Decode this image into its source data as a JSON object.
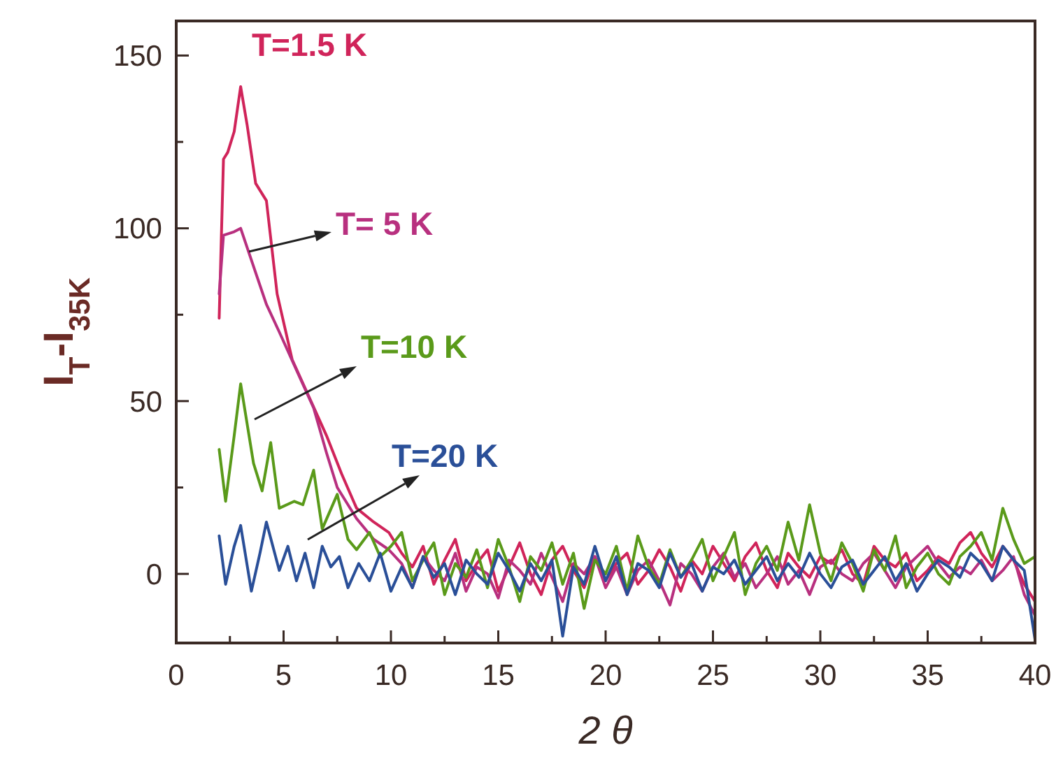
{
  "chart_data": {
    "type": "line",
    "xlabel": "2 θ",
    "ylabel": "I$_{T}$-I$_{35K}$",
    "xlim": [
      0,
      40
    ],
    "ylim": [
      -20,
      160
    ],
    "xticks": [
      0,
      {
        "value": 2.5,
        "label": null
      },
      5,
      {
        "value": 7.5,
        "label": null
      },
      10,
      {
        "value": 12.5,
        "label": null
      },
      15,
      {
        "value": 17.5,
        "label": null
      },
      20,
      {
        "value": 22.5,
        "label": null
      },
      25,
      {
        "value": 27.5,
        "label": null
      },
      30,
      {
        "value": 32.5,
        "label": null
      },
      35,
      {
        "value": 37.5,
        "label": null
      },
      40
    ],
    "yticks": [
      0,
      {
        "value": 25,
        "label": null
      },
      50,
      {
        "value": 75,
        "label": null
      },
      100,
      {
        "value": 125,
        "label": null
      },
      150
    ],
    "grid": false,
    "marker": "none",
    "line_style": "solid",
    "series": [
      {
        "name": "T=1.5 K",
        "color": "#d0245a",
        "x": [
          2,
          2.2,
          2.4,
          2.7,
          3,
          3.3,
          3.7,
          4.2,
          4.7,
          5.4,
          6.2,
          7,
          7.7,
          8.4,
          9.2,
          9.9,
          10.5,
          11,
          11.5,
          12,
          12.5,
          13,
          13.5,
          14,
          14.5,
          15,
          15.5,
          16,
          16.5,
          17,
          17.5,
          18,
          18.5,
          19,
          19.5,
          20,
          20.5,
          21,
          21.5,
          22,
          22.5,
          23,
          23.5,
          24,
          24.5,
          25,
          25.5,
          26,
          26.5,
          27,
          27.5,
          28,
          28.5,
          29,
          29.5,
          30,
          30.5,
          31,
          31.5,
          32,
          32.5,
          33,
          33.5,
          34,
          34.5,
          35,
          35.5,
          36,
          36.5,
          37,
          37.5,
          38,
          38.5,
          39,
          39.5,
          40
        ],
        "values": [
          74,
          120,
          122,
          128,
          141,
          130,
          113,
          108,
          81,
          62,
          51,
          40,
          29,
          19,
          15,
          12,
          6,
          2,
          8,
          -3,
          4,
          10,
          -2,
          3,
          7,
          -5,
          2,
          9,
          0,
          -6,
          4,
          8,
          1,
          -4,
          5,
          -2,
          3,
          6,
          -3,
          1,
          7,
          2,
          -5,
          4,
          0,
          8,
          3,
          -2,
          5,
          9,
          1,
          -4,
          6,
          2,
          -1,
          5,
          3,
          7,
          0,
          -3,
          8,
          4,
          2,
          6,
          -2,
          1,
          5,
          3,
          9,
          12,
          6,
          2,
          8,
          4,
          -3,
          -8
        ]
      },
      {
        "name": "T= 5 K",
        "color": "#b8307f",
        "x": [
          2,
          2.2,
          2.7,
          3,
          3.6,
          4.2,
          4.8,
          5.6,
          6.4,
          7,
          7.5,
          8.4,
          9.2,
          9.9,
          10.5,
          11,
          11.5,
          12,
          12.5,
          13,
          13.5,
          14,
          14.5,
          15,
          15.5,
          16,
          16.5,
          17,
          17.5,
          18,
          18.5,
          19,
          19.5,
          20,
          20.5,
          21,
          21.5,
          22,
          22.5,
          23,
          23.5,
          24,
          24.5,
          25,
          25.5,
          26,
          26.5,
          27,
          27.5,
          28,
          28.5,
          29,
          29.5,
          30,
          30.5,
          31,
          31.5,
          32,
          32.5,
          33,
          33.5,
          34,
          34.5,
          35,
          35.5,
          36,
          36.5,
          37,
          37.5,
          38,
          38.5,
          39,
          39.5,
          40
        ],
        "values": [
          81,
          98,
          99,
          100,
          89,
          78,
          70,
          59,
          48,
          35,
          25,
          16,
          10,
          7,
          3,
          -4,
          5,
          1,
          -2,
          6,
          -5,
          2,
          0,
          -7,
          4,
          1,
          -3,
          6,
          -1,
          -8,
          3,
          0,
          5,
          -4,
          2,
          -6,
          1,
          4,
          -2,
          -9,
          3,
          0,
          -5,
          2,
          6,
          -1,
          3,
          -4,
          0,
          5,
          -3,
          1,
          -6,
          2,
          4,
          0,
          -2,
          3,
          6,
          1,
          -4,
          2,
          5,
          8,
          3,
          -1,
          2,
          0,
          4,
          -2,
          1,
          5,
          -6,
          -12
        ]
      },
      {
        "name": "T=10 K",
        "color": "#5a9a1a",
        "x": [
          2,
          2.3,
          2.7,
          3,
          3.6,
          4,
          4.4,
          4.8,
          5.5,
          5.9,
          6.4,
          6.8,
          7.5,
          8,
          8.4,
          9,
          9.5,
          10,
          10.5,
          11,
          11.5,
          12,
          12.5,
          13,
          13.5,
          14,
          14.5,
          15,
          15.5,
          16,
          16.5,
          17,
          17.5,
          18,
          18.5,
          19,
          19.5,
          20,
          20.5,
          21,
          21.5,
          22,
          22.5,
          23,
          23.5,
          24,
          24.5,
          25,
          25.5,
          26,
          26.5,
          27,
          27.5,
          28,
          28.5,
          29,
          29.5,
          30,
          30.5,
          31,
          31.5,
          32,
          32.5,
          33,
          33.5,
          34,
          34.5,
          35,
          35.5,
          36,
          36.5,
          37,
          37.5,
          38,
          38.5,
          39,
          39.5,
          40
        ],
        "values": [
          36,
          21,
          40,
          55,
          32,
          24,
          38,
          19,
          21,
          20,
          30,
          13,
          23,
          10,
          7,
          12,
          5,
          8,
          12,
          -2,
          4,
          9,
          -6,
          3,
          -1,
          7,
          -4,
          10,
          2,
          -8,
          5,
          1,
          9,
          -3,
          6,
          -10,
          4,
          0,
          8,
          -5,
          11,
          2,
          -3,
          7,
          -1,
          4,
          10,
          -2,
          5,
          12,
          -6,
          3,
          8,
          1,
          15,
          4,
          20,
          6,
          -2,
          9,
          3,
          -5,
          7,
          1,
          11,
          -4,
          2,
          6,
          0,
          -3,
          5,
          8,
          12,
          4,
          19,
          10,
          3,
          5
        ]
      },
      {
        "name": "T=20  K",
        "color": "#2a4f98",
        "x": [
          2,
          2.3,
          2.7,
          3,
          3.5,
          3.9,
          4.2,
          4.8,
          5.2,
          5.6,
          6,
          6.4,
          6.8,
          7.2,
          7.6,
          8,
          8.5,
          9,
          9.5,
          10,
          10.5,
          11,
          11.5,
          12,
          12.5,
          13,
          13.5,
          14,
          14.5,
          15,
          15.5,
          16,
          16.5,
          17,
          17.5,
          18,
          18.5,
          19,
          19.5,
          20,
          20.5,
          21,
          21.5,
          22,
          22.5,
          23,
          23.5,
          24,
          24.5,
          25,
          25.5,
          26,
          26.5,
          27,
          27.5,
          28,
          28.5,
          29,
          29.5,
          30,
          30.5,
          31,
          31.5,
          32,
          32.5,
          33,
          33.5,
          34,
          34.5,
          35,
          35.5,
          36,
          36.5,
          37,
          37.5,
          38,
          38.5,
          39,
          39.5,
          40
        ],
        "values": [
          11,
          -3,
          8,
          14,
          -5,
          6,
          15,
          1,
          8,
          -2,
          6,
          -4,
          8,
          2,
          5,
          -4,
          3,
          -2,
          6,
          -5,
          2,
          -4,
          5,
          -1,
          3,
          -6,
          4,
          0,
          -3,
          6,
          1,
          -5,
          3,
          -2,
          4,
          -18,
          2,
          -3,
          8,
          -2,
          5,
          -6,
          3,
          1,
          -4,
          6,
          -1,
          3,
          -5,
          2,
          0,
          4,
          -3,
          1,
          5,
          -2,
          3,
          -1,
          6,
          0,
          -4,
          2,
          4,
          -3,
          1,
          5,
          -2,
          3,
          -5,
          0,
          4,
          2,
          -1,
          6,
          3,
          -2,
          8,
          4,
          1,
          -19
        ]
      }
    ]
  }
}
